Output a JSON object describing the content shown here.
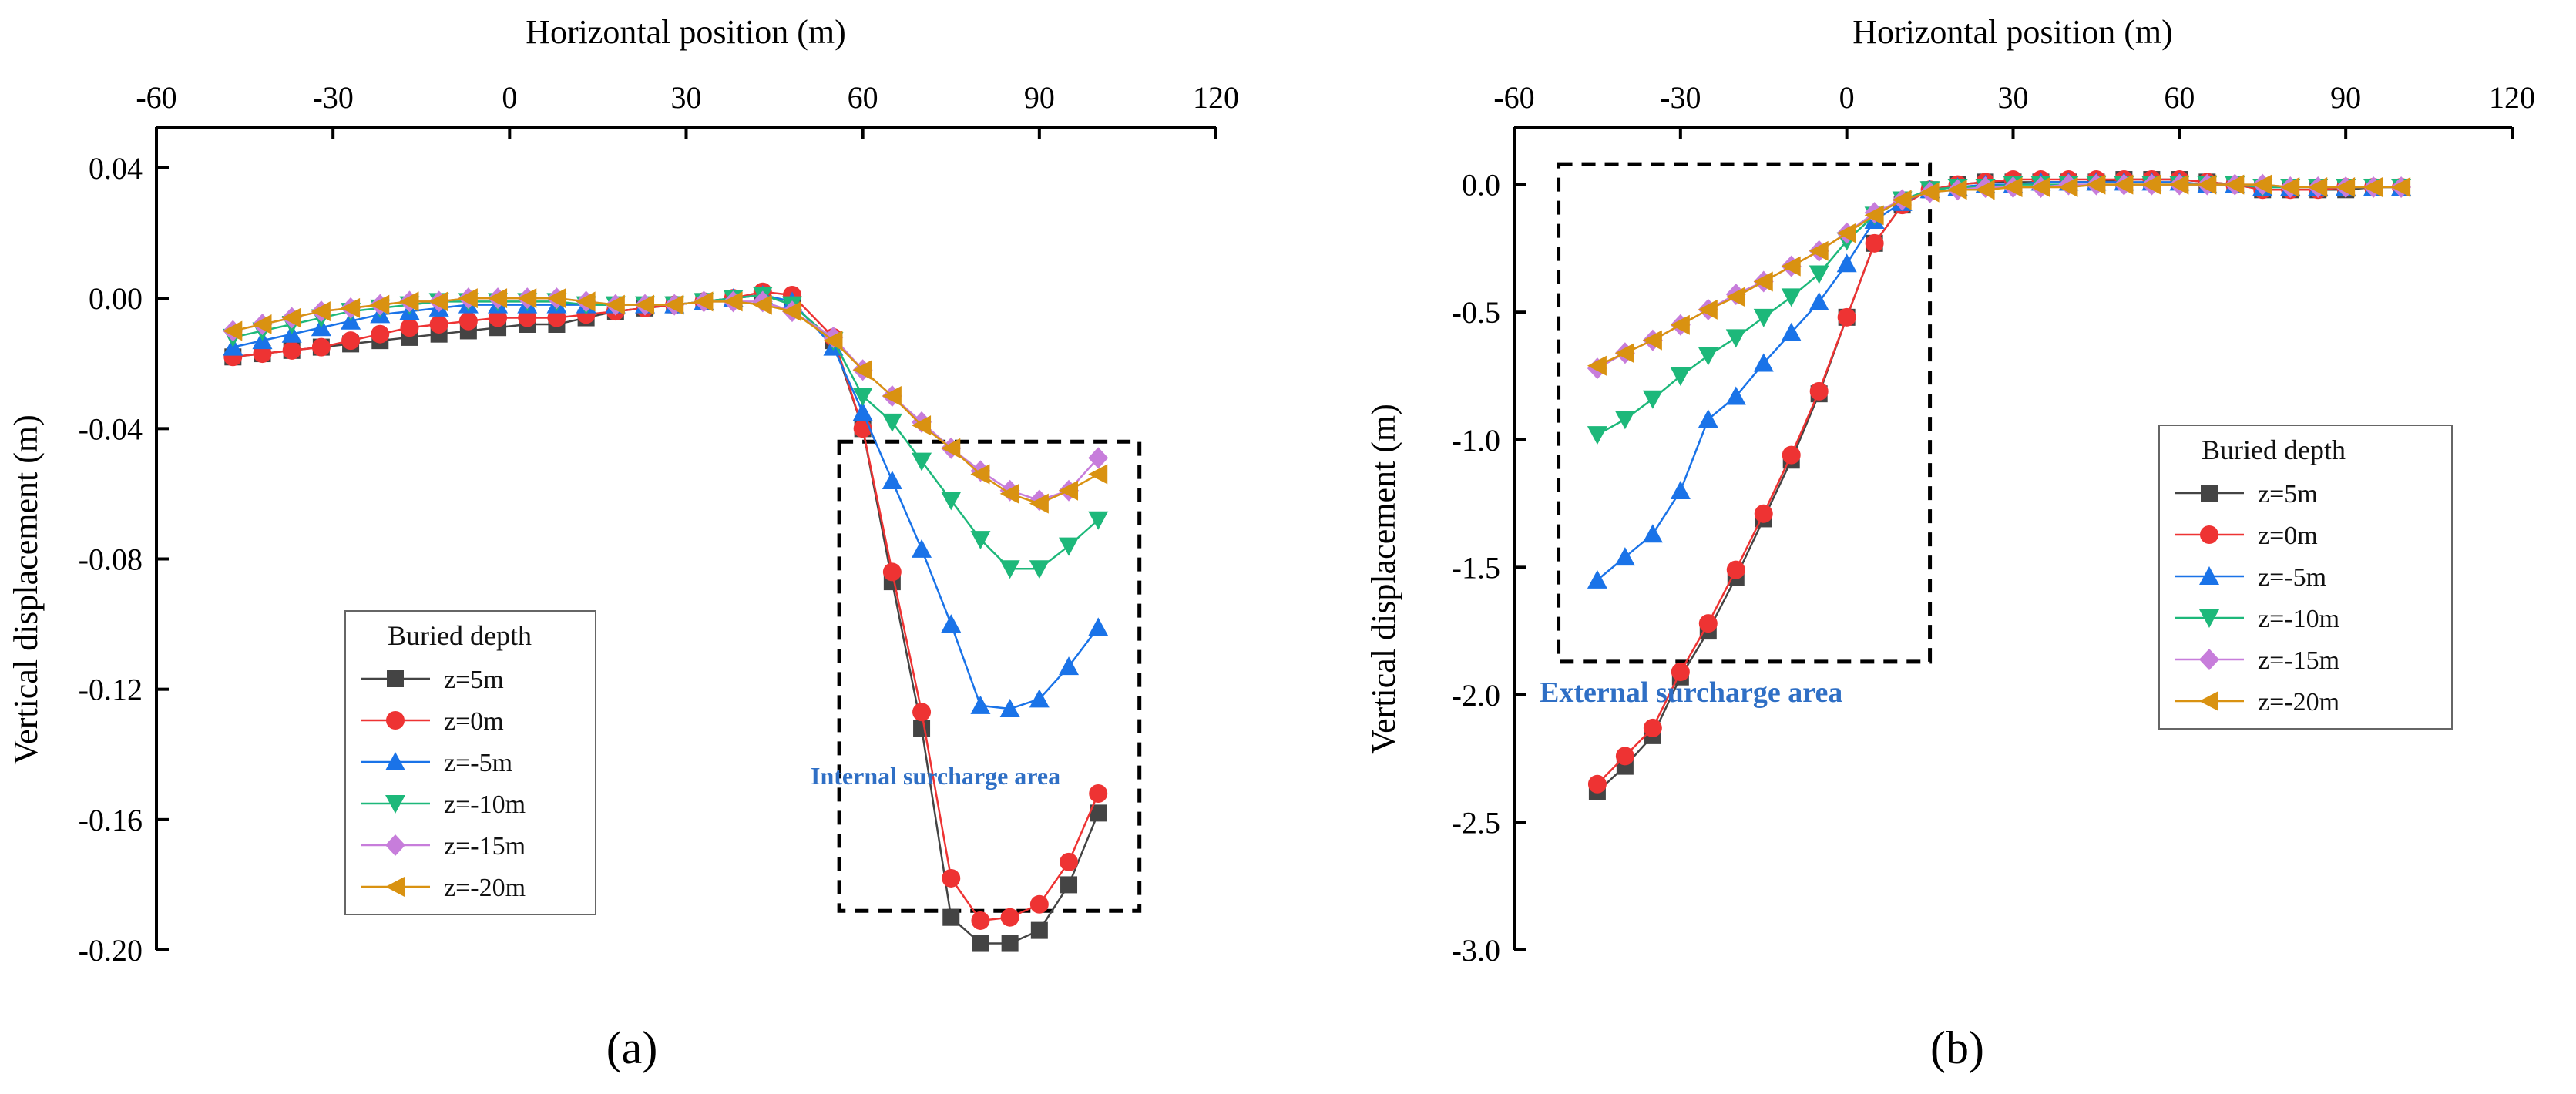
{
  "chart_data": [
    {
      "panel": "(a)",
      "type": "line",
      "xlabel": "Horizontal position (m)",
      "ylabel": "Vertical displacement (m)",
      "xlim": [
        -60,
        120
      ],
      "ylim": [
        -0.2,
        0.04
      ],
      "xticks": [
        -60,
        -30,
        0,
        30,
        60,
        90,
        120
      ],
      "yticks": [
        0.04,
        0.0,
        -0.04,
        -0.08,
        -0.12,
        -0.16,
        -0.2
      ],
      "ytick_labels": [
        "0.04",
        "0.00",
        "-0.04",
        "-0.08",
        "-0.12",
        "-0.16",
        "-0.20"
      ],
      "legend_title": "Buried depth",
      "legend_position": "bottom-left",
      "annotation": "Internal surcharge area",
      "annotation_color": "#2F6FC5",
      "annotation_box": {
        "x0": 56,
        "x1": 107,
        "y0": -0.044,
        "y1": -0.188
      },
      "x": [
        -47,
        -42,
        -37,
        -32,
        -27,
        -22,
        -17,
        -12,
        -7,
        -2,
        3,
        8,
        13,
        18,
        23,
        28,
        33,
        38,
        43,
        48,
        55,
        60,
        65,
        70,
        75,
        80,
        85,
        90,
        95,
        100
      ],
      "series": [
        {
          "name": "z=5m",
          "color": "#444444",
          "marker": "square",
          "values": [
            -0.018,
            -0.017,
            -0.016,
            -0.015,
            -0.014,
            -0.013,
            -0.012,
            -0.011,
            -0.01,
            -0.009,
            -0.008,
            -0.008,
            -0.006,
            -0.004,
            -0.003,
            -0.002,
            -0.001,
            0.0,
            0.001,
            -0.002,
            -0.013,
            -0.04,
            -0.087,
            -0.132,
            -0.19,
            -0.198,
            -0.198,
            -0.194,
            -0.18,
            -0.158
          ]
        },
        {
          "name": "z=0m",
          "color": "#EE3333",
          "marker": "circle",
          "values": [
            -0.018,
            -0.017,
            -0.016,
            -0.015,
            -0.013,
            -0.011,
            -0.009,
            -0.008,
            -0.007,
            -0.006,
            -0.006,
            -0.006,
            -0.005,
            -0.004,
            -0.003,
            -0.002,
            -0.001,
            0.0,
            0.002,
            0.001,
            -0.012,
            -0.04,
            -0.084,
            -0.127,
            -0.178,
            -0.191,
            -0.19,
            -0.186,
            -0.173,
            -0.152
          ]
        },
        {
          "name": "z=-5m",
          "color": "#1A73E8",
          "marker": "triangle-up",
          "values": [
            -0.015,
            -0.013,
            -0.011,
            -0.009,
            -0.007,
            -0.005,
            -0.004,
            -0.003,
            -0.002,
            -0.002,
            -0.002,
            -0.002,
            -0.002,
            -0.002,
            -0.002,
            -0.002,
            -0.001,
            0.0,
            0.001,
            -0.001,
            -0.015,
            -0.035,
            -0.056,
            -0.077,
            -0.1,
            -0.125,
            -0.126,
            -0.123,
            -0.113,
            -0.101
          ]
        },
        {
          "name": "z=-10m",
          "color": "#1DB87A",
          "marker": "triangle-down",
          "values": [
            -0.012,
            -0.01,
            -0.008,
            -0.006,
            -0.004,
            -0.003,
            -0.002,
            -0.001,
            -0.001,
            -0.001,
            -0.001,
            -0.001,
            -0.002,
            -0.002,
            -0.002,
            -0.002,
            -0.001,
            0.0,
            0.001,
            -0.002,
            -0.013,
            -0.03,
            -0.038,
            -0.05,
            -0.062,
            -0.074,
            -0.083,
            -0.083,
            -0.076,
            -0.068
          ]
        },
        {
          "name": "z=-15m",
          "color": "#C77DDB",
          "marker": "diamond",
          "values": [
            -0.01,
            -0.008,
            -0.006,
            -0.004,
            -0.003,
            -0.002,
            -0.001,
            -0.001,
            0.0,
            0.0,
            0.0,
            0.0,
            -0.001,
            -0.002,
            -0.002,
            -0.002,
            -0.001,
            -0.001,
            -0.001,
            -0.004,
            -0.012,
            -0.022,
            -0.03,
            -0.038,
            -0.046,
            -0.053,
            -0.059,
            -0.062,
            -0.059,
            -0.049
          ]
        },
        {
          "name": "z=-20m",
          "color": "#D99211",
          "marker": "triangle-left",
          "values": [
            -0.01,
            -0.008,
            -0.006,
            -0.004,
            -0.003,
            -0.002,
            -0.001,
            -0.001,
            0.0,
            0.0,
            0.0,
            0.0,
            -0.001,
            -0.002,
            -0.002,
            -0.002,
            -0.001,
            -0.001,
            -0.002,
            -0.004,
            -0.013,
            -0.022,
            -0.03,
            -0.039,
            -0.046,
            -0.054,
            -0.06,
            -0.063,
            -0.059,
            -0.054
          ]
        }
      ]
    },
    {
      "panel": "(b)",
      "type": "line",
      "xlabel": "Horizontal position (m)",
      "ylabel": "Vertical displacement (m)",
      "xlim": [
        -60,
        120
      ],
      "ylim": [
        -3.0,
        0.15
      ],
      "xticks": [
        -60,
        -30,
        0,
        30,
        60,
        90,
        120
      ],
      "yticks": [
        0.0,
        -0.5,
        -1.0,
        -1.5,
        -2.0,
        -2.5,
        -3.0
      ],
      "ytick_labels": [
        "0.0",
        "-0.5",
        "-1.0",
        "-1.5",
        "-2.0",
        "-2.5",
        "-3.0"
      ],
      "legend_title": "Buried depth",
      "legend_position": "right",
      "annotation": "External surcharge area",
      "annotation_color": "#2F6FC5",
      "annotation_box": {
        "x0": -52,
        "x1": 15,
        "y0": 0.08,
        "y1": -1.87
      },
      "x": [
        -45,
        -40,
        -35,
        -30,
        -25,
        -20,
        -15,
        -10,
        -5,
        0,
        5,
        10,
        15,
        20,
        25,
        30,
        35,
        40,
        45,
        50,
        55,
        60,
        65,
        70,
        75,
        80,
        85,
        90,
        95,
        100
      ],
      "series": [
        {
          "name": "z=5m",
          "color": "#444444",
          "marker": "square",
          "values": [
            -2.38,
            -2.28,
            -2.16,
            -1.93,
            -1.75,
            -1.54,
            -1.31,
            -1.08,
            -0.82,
            -0.52,
            -0.23,
            -0.08,
            -0.02,
            0.0,
            0.01,
            0.01,
            0.01,
            0.01,
            0.01,
            0.02,
            0.02,
            0.02,
            0.01,
            0.0,
            -0.02,
            -0.02,
            -0.02,
            -0.02,
            -0.01,
            -0.01
          ]
        },
        {
          "name": "z=0m",
          "color": "#EE3333",
          "marker": "circle",
          "values": [
            -2.35,
            -2.24,
            -2.13,
            -1.91,
            -1.72,
            -1.51,
            -1.29,
            -1.06,
            -0.81,
            -0.52,
            -0.23,
            -0.08,
            -0.02,
            0.0,
            0.01,
            0.02,
            0.02,
            0.02,
            0.02,
            0.02,
            0.02,
            0.02,
            0.01,
            0.0,
            -0.02,
            -0.02,
            -0.02,
            -0.01,
            -0.01,
            -0.01
          ]
        },
        {
          "name": "z=-5m",
          "color": "#1A73E8",
          "marker": "triangle-up",
          "values": [
            -1.55,
            -1.46,
            -1.37,
            -1.2,
            -0.92,
            -0.83,
            -0.7,
            -0.58,
            -0.46,
            -0.31,
            -0.14,
            -0.07,
            -0.02,
            -0.01,
            0.0,
            0.0,
            0.01,
            0.01,
            0.01,
            0.01,
            0.01,
            0.01,
            0.0,
            0.0,
            -0.01,
            -0.01,
            -0.01,
            -0.01,
            -0.01,
            -0.01
          ]
        },
        {
          "name": "z=-10m",
          "color": "#1DB87A",
          "marker": "triangle-down",
          "values": [
            -0.98,
            -0.92,
            -0.84,
            -0.75,
            -0.67,
            -0.6,
            -0.52,
            -0.44,
            -0.35,
            -0.22,
            -0.12,
            -0.06,
            -0.02,
            -0.01,
            -0.01,
            0.0,
            0.0,
            0.0,
            0.0,
            0.0,
            0.0,
            0.0,
            0.0,
            0.0,
            -0.01,
            -0.01,
            -0.01,
            -0.01,
            -0.01,
            -0.01
          ]
        },
        {
          "name": "z=-15m",
          "color": "#C77DDB",
          "marker": "diamond",
          "values": [
            -0.72,
            -0.66,
            -0.61,
            -0.55,
            -0.49,
            -0.43,
            -0.38,
            -0.32,
            -0.26,
            -0.19,
            -0.11,
            -0.06,
            -0.03,
            -0.02,
            -0.01,
            -0.01,
            -0.01,
            0.0,
            0.0,
            0.0,
            0.0,
            0.0,
            0.0,
            0.0,
            0.0,
            -0.01,
            -0.01,
            -0.01,
            -0.01,
            -0.01
          ]
        },
        {
          "name": "z=-20m",
          "color": "#D99211",
          "marker": "triangle-left",
          "values": [
            -0.71,
            -0.66,
            -0.61,
            -0.55,
            -0.49,
            -0.44,
            -0.38,
            -0.32,
            -0.26,
            -0.19,
            -0.12,
            -0.06,
            -0.03,
            -0.02,
            -0.02,
            -0.01,
            -0.01,
            -0.01,
            0.0,
            0.0,
            0.0,
            0.0,
            0.0,
            0.0,
            0.0,
            -0.01,
            -0.01,
            -0.01,
            -0.01,
            -0.01
          ]
        }
      ]
    }
  ]
}
